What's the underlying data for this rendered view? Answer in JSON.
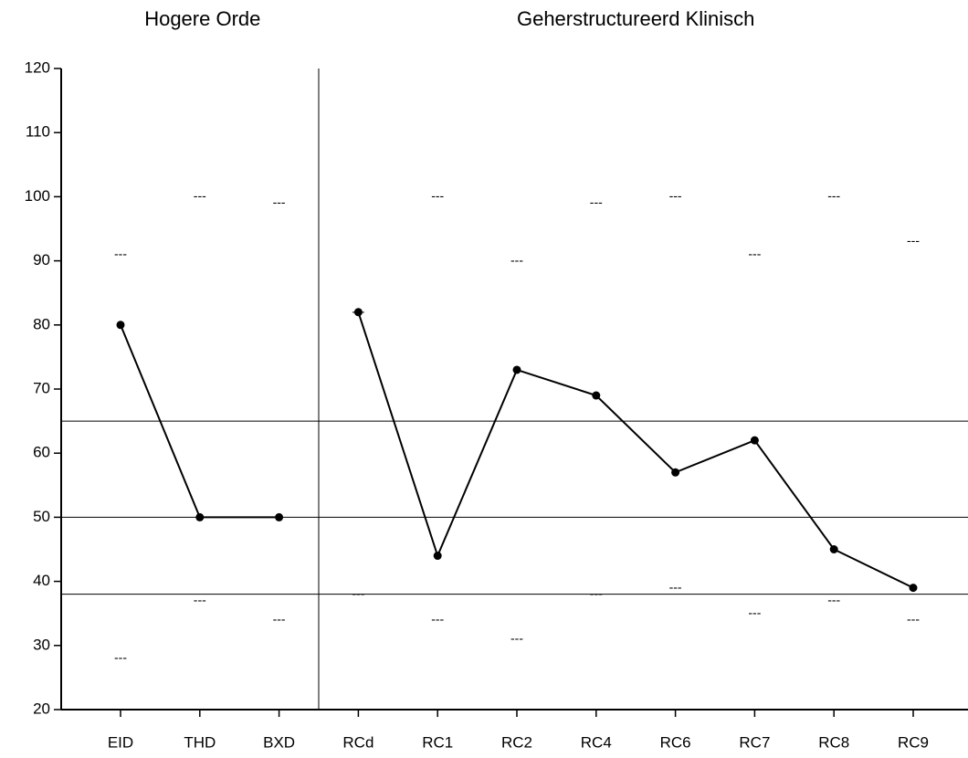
{
  "chart_data": {
    "type": "line",
    "groups": [
      {
        "title": "Hogere Orde",
        "categories": [
          "EID",
          "THD",
          "BXD"
        ],
        "values": [
          80,
          50,
          50
        ],
        "upper": [
          91,
          100,
          99
        ],
        "lower": [
          28,
          37,
          34
        ]
      },
      {
        "title": "Geherstructureerd Klinisch",
        "categories": [
          "RCd",
          "RC1",
          "RC2",
          "RC4",
          "RC6",
          "RC7",
          "RC8",
          "RC9"
        ],
        "values": [
          82,
          44,
          73,
          69,
          57,
          62,
          45,
          39
        ],
        "upper": [
          82,
          100,
          90,
          99,
          100,
          91,
          100,
          93
        ],
        "lower": [
          38,
          34,
          31,
          38,
          39,
          35,
          37,
          34
        ]
      }
    ],
    "range_marker": "---",
    "reference_lines": [
      65,
      50,
      38
    ],
    "color": "#000000",
    "ylim": [
      20,
      120
    ],
    "yticks": [
      20,
      30,
      40,
      50,
      60,
      70,
      80,
      90,
      100,
      110,
      120
    ]
  }
}
